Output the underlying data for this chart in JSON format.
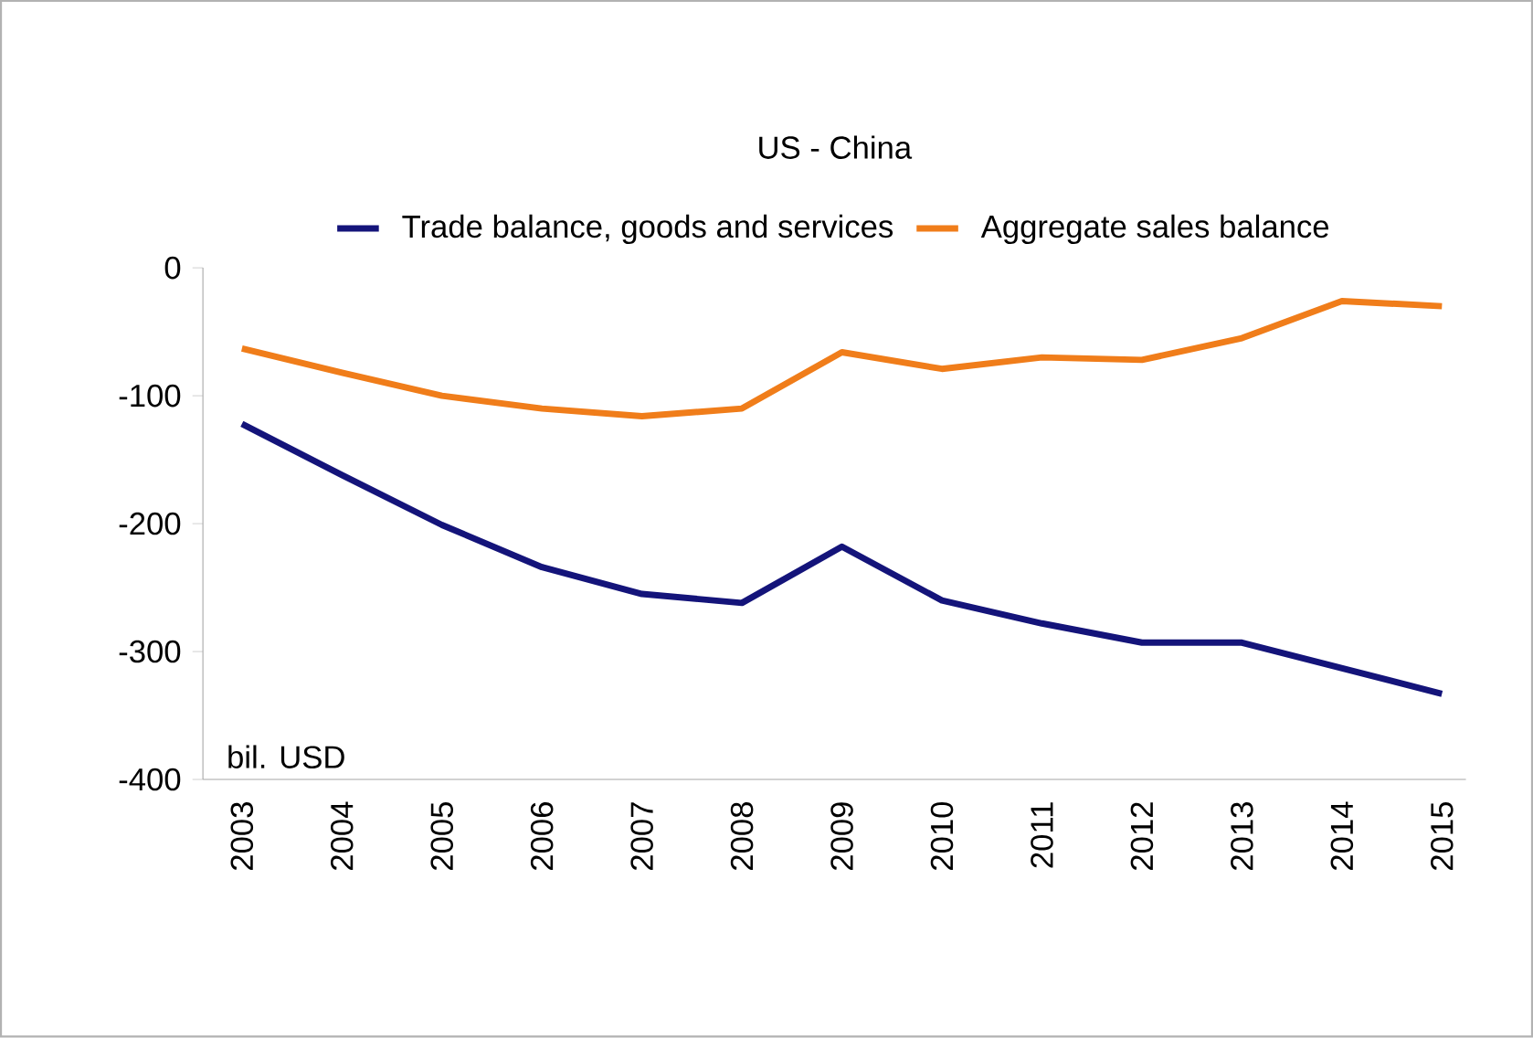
{
  "chart_data": {
    "type": "line",
    "title": "US - China",
    "categories": [
      "2003",
      "2004",
      "2005",
      "2006",
      "2007",
      "2008",
      "2009",
      "2010",
      "2011",
      "2012",
      "2013",
      "2014",
      "2015"
    ],
    "series": [
      {
        "name": "Trade balance, goods and services",
        "color": "#14147a",
        "values": [
          -122,
          -162,
          -201,
          -234,
          -255,
          -262,
          -218,
          -260,
          -278,
          -293,
          -293,
          -313,
          -333
        ]
      },
      {
        "name": "Aggregate sales balance",
        "color": "#f07d1a",
        "values": [
          -63,
          -82,
          -100,
          -110,
          -116,
          -110,
          -66,
          -79,
          -70,
          -72,
          -55,
          -26,
          -30
        ]
      }
    ],
    "ylim": [
      -400,
      0
    ],
    "yticks": [
      -400,
      -300,
      -200,
      -100,
      0
    ],
    "annotations": [
      "bil. USD"
    ],
    "legend": "top",
    "grid": false,
    "marker": "none",
    "line_style": "solid"
  }
}
